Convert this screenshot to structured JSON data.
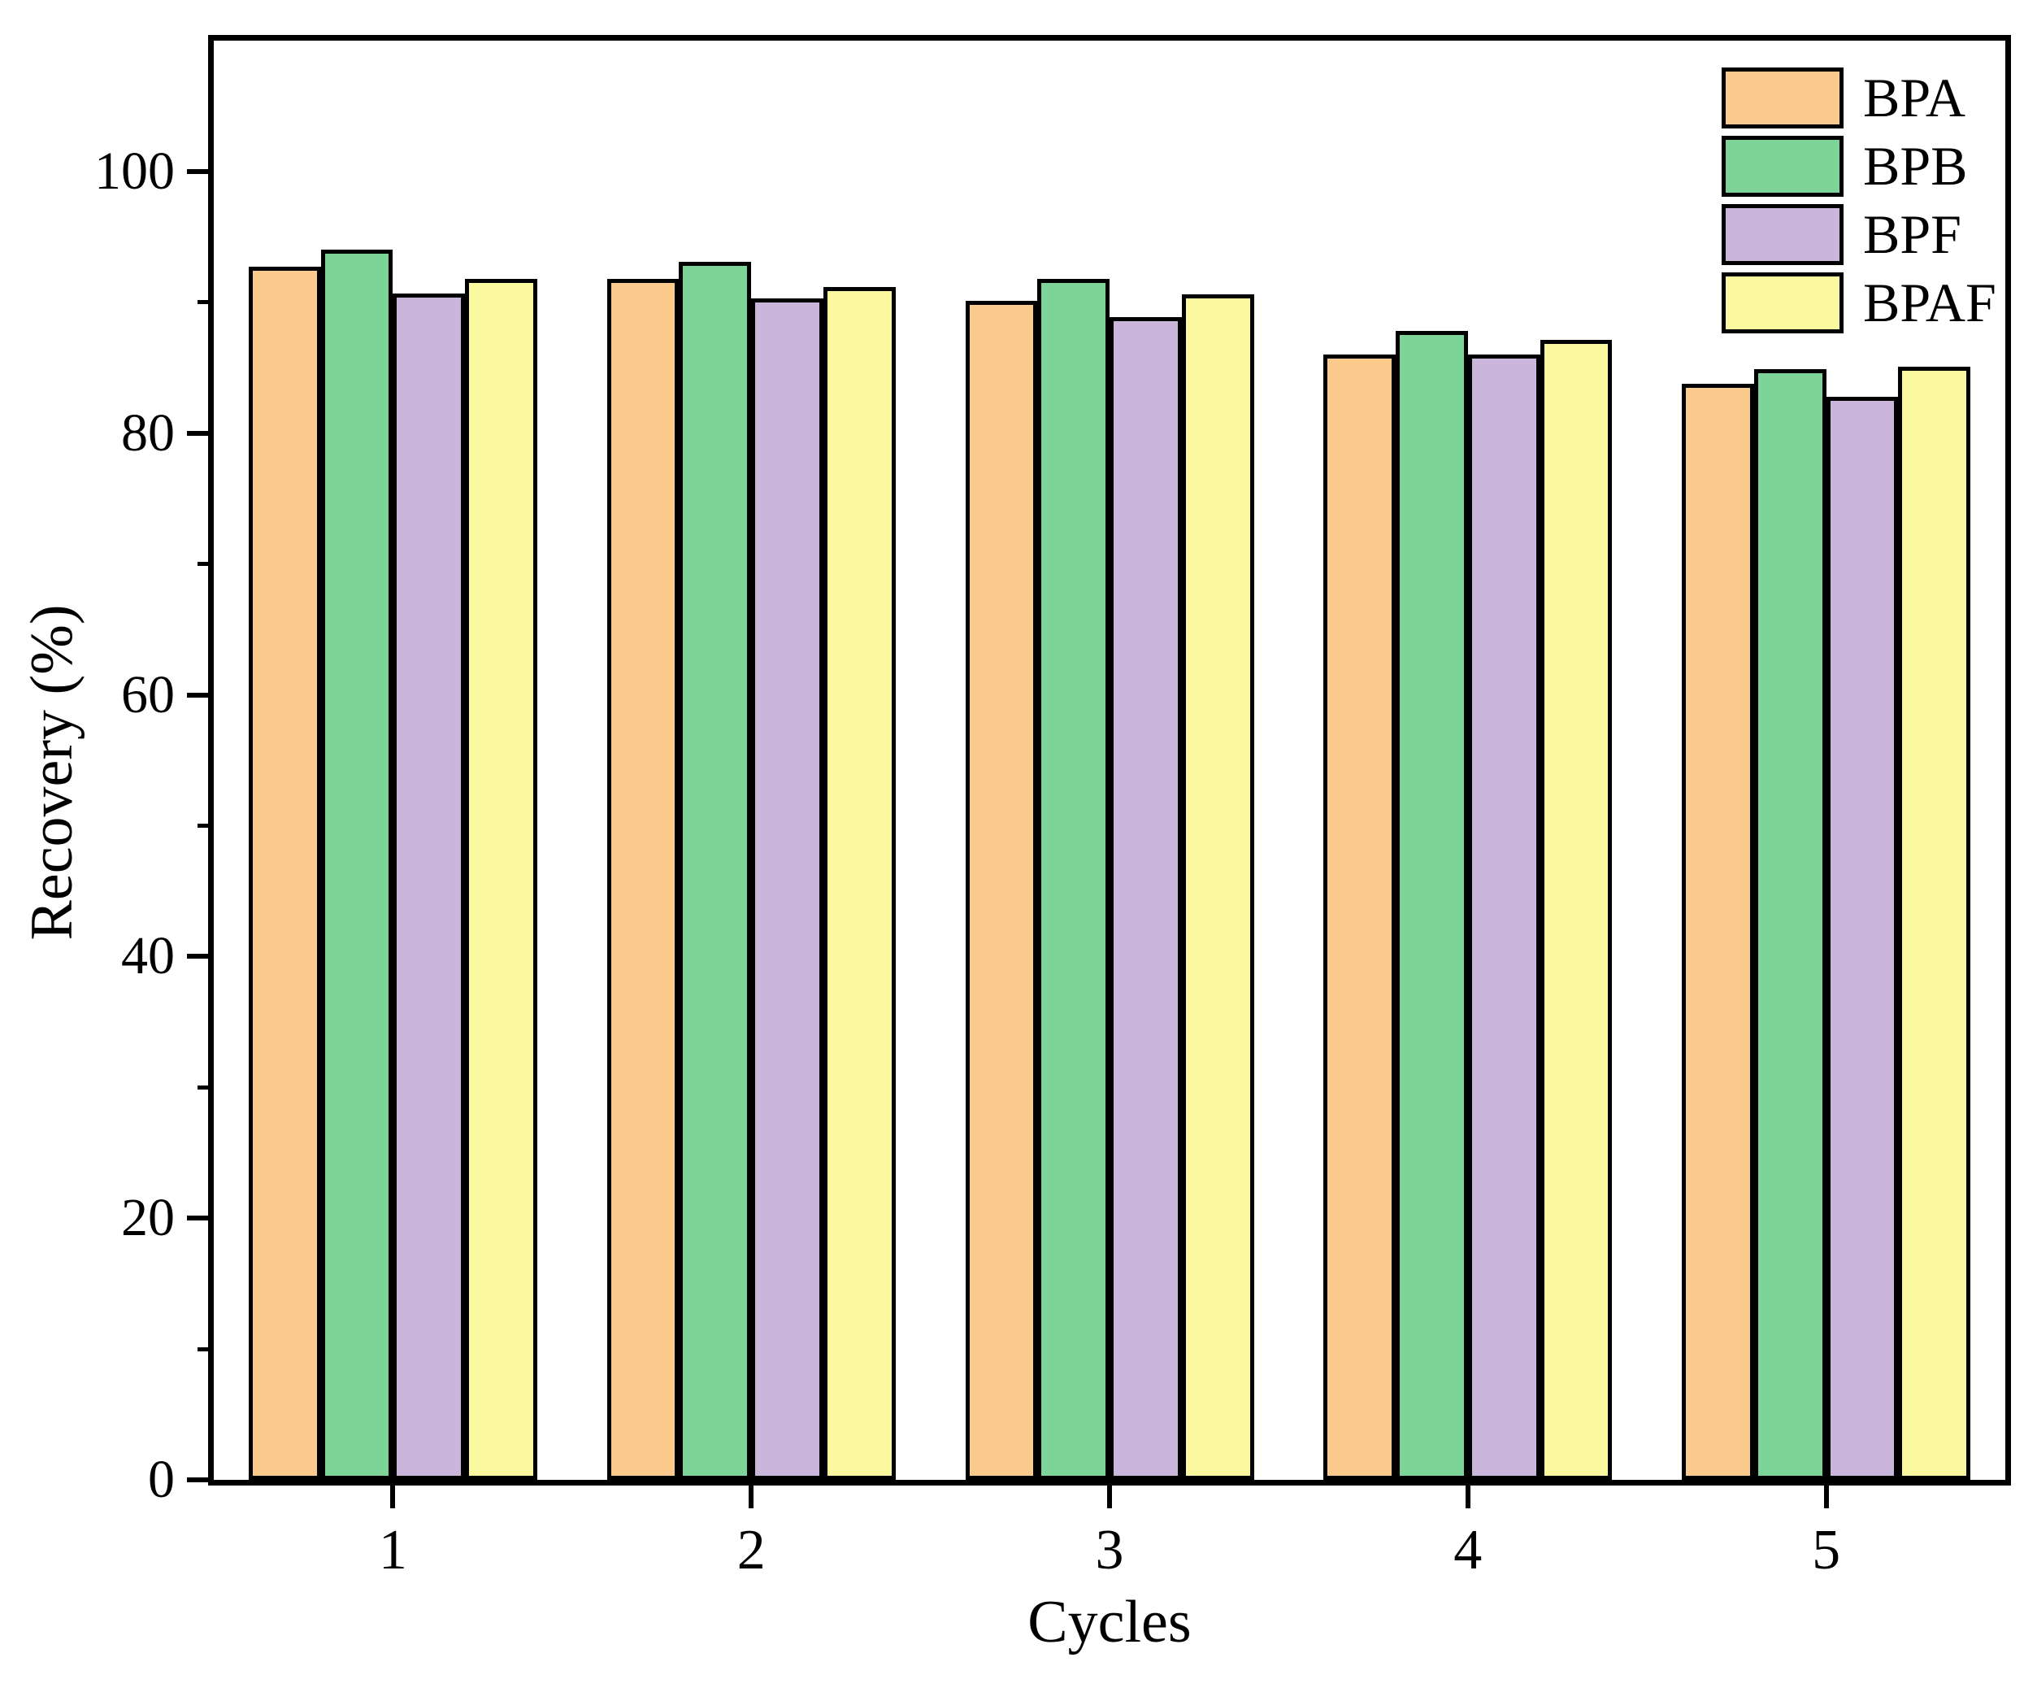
{
  "chart_data": {
    "type": "bar",
    "title": "",
    "xlabel": "Cycles",
    "ylabel": "Recovery (%)",
    "categories": [
      "1",
      "2",
      "3",
      "4",
      "5"
    ],
    "series": [
      {
        "name": "BPA",
        "color": "#FBCB8D",
        "values": [
          92.7,
          91.8,
          90.1,
          86.0,
          83.8
        ]
      },
      {
        "name": "BPB",
        "color": "#7DD499",
        "values": [
          94.0,
          93.1,
          91.8,
          87.8,
          84.9
        ]
      },
      {
        "name": "BPF",
        "color": "#CBB6DB",
        "values": [
          90.7,
          90.3,
          88.9,
          86.0,
          82.8
        ]
      },
      {
        "name": "BPAF",
        "color": "#FAF9A0",
        "values": [
          91.8,
          91.2,
          90.6,
          87.1,
          85.1
        ]
      }
    ],
    "ylim": [
      0,
      110
    ],
    "yticks_major": [
      0,
      20,
      40,
      60,
      80,
      100
    ],
    "yticks_minor": [
      10,
      30,
      50,
      70,
      90
    ],
    "grid": false,
    "legend_position": "top-right",
    "bar_border_color": "#000000",
    "axis_color": "#000000"
  }
}
